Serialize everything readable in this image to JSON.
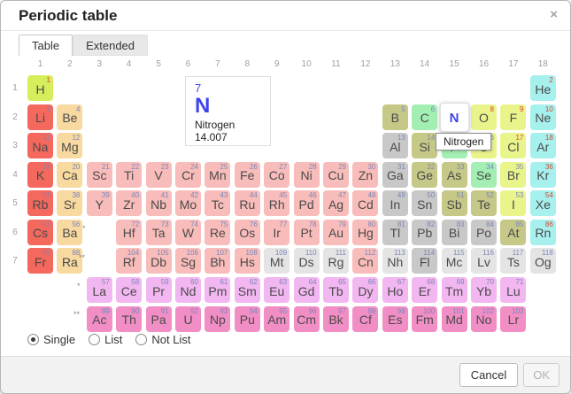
{
  "dialog": {
    "title": "Periodic table",
    "close_label": "×"
  },
  "tabs": [
    {
      "label": "Table",
      "active": true
    },
    {
      "label": "Extended",
      "active": false
    }
  ],
  "column_headers": [
    "1",
    "2",
    "3",
    "4",
    "5",
    "6",
    "7",
    "8",
    "9",
    "10",
    "11",
    "12",
    "13",
    "14",
    "15",
    "16",
    "17",
    "18"
  ],
  "row_headers": [
    "1",
    "2",
    "3",
    "4",
    "5",
    "6",
    "7"
  ],
  "info_card": {
    "number": "7",
    "symbol": "N",
    "name": "Nitrogen",
    "mass": "14.007"
  },
  "tooltip": {
    "text": "Nitrogen"
  },
  "options": [
    {
      "label": "Single",
      "selected": true
    },
    {
      "label": "List",
      "selected": false
    },
    {
      "label": "Not List",
      "selected": false
    }
  ],
  "footer": {
    "cancel_label": "Cancel",
    "ok_label": "OK",
    "ok_disabled": true
  },
  "fblock_markers": {
    "lanthanide": "*",
    "actinide": "**"
  },
  "category_colors": {
    "hydrogen": "#d6ed5c",
    "alkali": "#f4685e",
    "alkaline": "#f8d9a0",
    "transition": "#f8bcba",
    "post": "#c8c8c8",
    "metalloid": "#c5c886",
    "nonmetal": "#a3eeb2",
    "reactive": "#e9f48b",
    "noble": "#a6f0ee",
    "lanthanide": "#f2b6f0",
    "actinide": "#f28ec6",
    "unknown": "#e4e4e4"
  },
  "accent_color": "#3d45e8",
  "gas_number_elements": [
    "H",
    "He",
    "N",
    "O",
    "F",
    "Ne",
    "Cl",
    "Ar",
    "Kr",
    "Xe",
    "Rn"
  ],
  "elements": [
    {
      "n": 1,
      "sym": "H",
      "row": 1,
      "col": 1,
      "cat": "hydrogen"
    },
    {
      "n": 2,
      "sym": "He",
      "row": 1,
      "col": 18,
      "cat": "noble"
    },
    {
      "n": 3,
      "sym": "Li",
      "row": 2,
      "col": 1,
      "cat": "alkali"
    },
    {
      "n": 4,
      "sym": "Be",
      "row": 2,
      "col": 2,
      "cat": "alkaline"
    },
    {
      "n": 5,
      "sym": "B",
      "row": 2,
      "col": 13,
      "cat": "metalloid"
    },
    {
      "n": 6,
      "sym": "C",
      "row": 2,
      "col": 14,
      "cat": "nonmetal"
    },
    {
      "n": 7,
      "sym": "N",
      "row": 2,
      "col": 15,
      "cat": "nonmetal",
      "selected": true
    },
    {
      "n": 8,
      "sym": "O",
      "row": 2,
      "col": 16,
      "cat": "reactive"
    },
    {
      "n": 9,
      "sym": "F",
      "row": 2,
      "col": 17,
      "cat": "reactive"
    },
    {
      "n": 10,
      "sym": "Ne",
      "row": 2,
      "col": 18,
      "cat": "noble"
    },
    {
      "n": 11,
      "sym": "Na",
      "row": 3,
      "col": 1,
      "cat": "alkali"
    },
    {
      "n": 12,
      "sym": "Mg",
      "row": 3,
      "col": 2,
      "cat": "alkaline"
    },
    {
      "n": 13,
      "sym": "Al",
      "row": 3,
      "col": 13,
      "cat": "post"
    },
    {
      "n": 14,
      "sym": "Si",
      "row": 3,
      "col": 14,
      "cat": "metalloid"
    },
    {
      "n": 15,
      "sym": "P",
      "row": 3,
      "col": 15,
      "cat": "nonmetal"
    },
    {
      "n": 16,
      "sym": "S",
      "row": 3,
      "col": 16,
      "cat": "reactive"
    },
    {
      "n": 17,
      "sym": "Cl",
      "row": 3,
      "col": 17,
      "cat": "reactive"
    },
    {
      "n": 18,
      "sym": "Ar",
      "row": 3,
      "col": 18,
      "cat": "noble"
    },
    {
      "n": 19,
      "sym": "K",
      "row": 4,
      "col": 1,
      "cat": "alkali"
    },
    {
      "n": 20,
      "sym": "Ca",
      "row": 4,
      "col": 2,
      "cat": "alkaline"
    },
    {
      "n": 21,
      "sym": "Sc",
      "row": 4,
      "col": 3,
      "cat": "transition"
    },
    {
      "n": 22,
      "sym": "Ti",
      "row": 4,
      "col": 4,
      "cat": "transition"
    },
    {
      "n": 23,
      "sym": "V",
      "row": 4,
      "col": 5,
      "cat": "transition"
    },
    {
      "n": 24,
      "sym": "Cr",
      "row": 4,
      "col": 6,
      "cat": "transition"
    },
    {
      "n": 25,
      "sym": "Mn",
      "row": 4,
      "col": 7,
      "cat": "transition"
    },
    {
      "n": 26,
      "sym": "Fe",
      "row": 4,
      "col": 8,
      "cat": "transition"
    },
    {
      "n": 27,
      "sym": "Co",
      "row": 4,
      "col": 9,
      "cat": "transition"
    },
    {
      "n": 28,
      "sym": "Ni",
      "row": 4,
      "col": 10,
      "cat": "transition"
    },
    {
      "n": 29,
      "sym": "Cu",
      "row": 4,
      "col": 11,
      "cat": "transition"
    },
    {
      "n": 30,
      "sym": "Zn",
      "row": 4,
      "col": 12,
      "cat": "transition"
    },
    {
      "n": 31,
      "sym": "Ga",
      "row": 4,
      "col": 13,
      "cat": "post"
    },
    {
      "n": 32,
      "sym": "Ge",
      "row": 4,
      "col": 14,
      "cat": "metalloid"
    },
    {
      "n": 33,
      "sym": "As",
      "row": 4,
      "col": 15,
      "cat": "metalloid"
    },
    {
      "n": 34,
      "sym": "Se",
      "row": 4,
      "col": 16,
      "cat": "nonmetal"
    },
    {
      "n": 35,
      "sym": "Br",
      "row": 4,
      "col": 17,
      "cat": "reactive"
    },
    {
      "n": 36,
      "sym": "Kr",
      "row": 4,
      "col": 18,
      "cat": "noble"
    },
    {
      "n": 37,
      "sym": "Rb",
      "row": 5,
      "col": 1,
      "cat": "alkali"
    },
    {
      "n": 38,
      "sym": "Sr",
      "row": 5,
      "col": 2,
      "cat": "alkaline"
    },
    {
      "n": 39,
      "sym": "Y",
      "row": 5,
      "col": 3,
      "cat": "transition"
    },
    {
      "n": 40,
      "sym": "Zr",
      "row": 5,
      "col": 4,
      "cat": "transition"
    },
    {
      "n": 41,
      "sym": "Nb",
      "row": 5,
      "col": 5,
      "cat": "transition"
    },
    {
      "n": 42,
      "sym": "Mo",
      "row": 5,
      "col": 6,
      "cat": "transition"
    },
    {
      "n": 43,
      "sym": "Tc",
      "row": 5,
      "col": 7,
      "cat": "transition"
    },
    {
      "n": 44,
      "sym": "Ru",
      "row": 5,
      "col": 8,
      "cat": "transition"
    },
    {
      "n": 45,
      "sym": "Rh",
      "row": 5,
      "col": 9,
      "cat": "transition"
    },
    {
      "n": 46,
      "sym": "Pd",
      "row": 5,
      "col": 10,
      "cat": "transition"
    },
    {
      "n": 47,
      "sym": "Ag",
      "row": 5,
      "col": 11,
      "cat": "transition"
    },
    {
      "n": 48,
      "sym": "Cd",
      "row": 5,
      "col": 12,
      "cat": "transition"
    },
    {
      "n": 49,
      "sym": "In",
      "row": 5,
      "col": 13,
      "cat": "post"
    },
    {
      "n": 50,
      "sym": "Sn",
      "row": 5,
      "col": 14,
      "cat": "post"
    },
    {
      "n": 51,
      "sym": "Sb",
      "row": 5,
      "col": 15,
      "cat": "metalloid"
    },
    {
      "n": 52,
      "sym": "Te",
      "row": 5,
      "col": 16,
      "cat": "metalloid"
    },
    {
      "n": 53,
      "sym": "I",
      "row": 5,
      "col": 17,
      "cat": "reactive"
    },
    {
      "n": 54,
      "sym": "Xe",
      "row": 5,
      "col": 18,
      "cat": "noble"
    },
    {
      "n": 55,
      "sym": "Cs",
      "row": 6,
      "col": 1,
      "cat": "alkali"
    },
    {
      "n": 56,
      "sym": "Ba",
      "row": 6,
      "col": 2,
      "cat": "alkaline"
    },
    {
      "n": 72,
      "sym": "Hf",
      "row": 6,
      "col": 4,
      "cat": "transition"
    },
    {
      "n": 73,
      "sym": "Ta",
      "row": 6,
      "col": 5,
      "cat": "transition"
    },
    {
      "n": 74,
      "sym": "W",
      "row": 6,
      "col": 6,
      "cat": "transition"
    },
    {
      "n": 75,
      "sym": "Re",
      "row": 6,
      "col": 7,
      "cat": "transition"
    },
    {
      "n": 76,
      "sym": "Os",
      "row": 6,
      "col": 8,
      "cat": "transition"
    },
    {
      "n": 77,
      "sym": "Ir",
      "row": 6,
      "col": 9,
      "cat": "transition"
    },
    {
      "n": 78,
      "sym": "Pt",
      "row": 6,
      "col": 10,
      "cat": "transition"
    },
    {
      "n": 79,
      "sym": "Au",
      "row": 6,
      "col": 11,
      "cat": "transition"
    },
    {
      "n": 80,
      "sym": "Hg",
      "row": 6,
      "col": 12,
      "cat": "transition"
    },
    {
      "n": 81,
      "sym": "Tl",
      "row": 6,
      "col": 13,
      "cat": "post"
    },
    {
      "n": 82,
      "sym": "Pb",
      "row": 6,
      "col": 14,
      "cat": "post"
    },
    {
      "n": 83,
      "sym": "Bi",
      "row": 6,
      "col": 15,
      "cat": "post"
    },
    {
      "n": 84,
      "sym": "Po",
      "row": 6,
      "col": 16,
      "cat": "post"
    },
    {
      "n": 85,
      "sym": "At",
      "row": 6,
      "col": 17,
      "cat": "metalloid"
    },
    {
      "n": 86,
      "sym": "Rn",
      "row": 6,
      "col": 18,
      "cat": "noble"
    },
    {
      "n": 87,
      "sym": "Fr",
      "row": 7,
      "col": 1,
      "cat": "alkali"
    },
    {
      "n": 88,
      "sym": "Ra",
      "row": 7,
      "col": 2,
      "cat": "alkaline"
    },
    {
      "n": 104,
      "sym": "Rf",
      "row": 7,
      "col": 4,
      "cat": "transition"
    },
    {
      "n": 105,
      "sym": "Db",
      "row": 7,
      "col": 5,
      "cat": "transition"
    },
    {
      "n": 106,
      "sym": "Sg",
      "row": 7,
      "col": 6,
      "cat": "transition"
    },
    {
      "n": 107,
      "sym": "Bh",
      "row": 7,
      "col": 7,
      "cat": "transition"
    },
    {
      "n": 108,
      "sym": "Hs",
      "row": 7,
      "col": 8,
      "cat": "transition"
    },
    {
      "n": 109,
      "sym": "Mt",
      "row": 7,
      "col": 9,
      "cat": "unknown"
    },
    {
      "n": 110,
      "sym": "Ds",
      "row": 7,
      "col": 10,
      "cat": "unknown"
    },
    {
      "n": 111,
      "sym": "Rg",
      "row": 7,
      "col": 11,
      "cat": "unknown"
    },
    {
      "n": 112,
      "sym": "Cn",
      "row": 7,
      "col": 12,
      "cat": "transition"
    },
    {
      "n": 113,
      "sym": "Nh",
      "row": 7,
      "col": 13,
      "cat": "unknown"
    },
    {
      "n": 114,
      "sym": "Fl",
      "row": 7,
      "col": 14,
      "cat": "post"
    },
    {
      "n": 115,
      "sym": "Mc",
      "row": 7,
      "col": 15,
      "cat": "unknown"
    },
    {
      "n": 116,
      "sym": "Lv",
      "row": 7,
      "col": 16,
      "cat": "unknown"
    },
    {
      "n": 117,
      "sym": "Ts",
      "row": 7,
      "col": 17,
      "cat": "unknown"
    },
    {
      "n": 118,
      "sym": "Og",
      "row": 7,
      "col": 18,
      "cat": "unknown"
    },
    {
      "n": 57,
      "sym": "La",
      "row": 8,
      "col": 3,
      "cat": "lanthanide"
    },
    {
      "n": 58,
      "sym": "Ce",
      "row": 8,
      "col": 4,
      "cat": "lanthanide"
    },
    {
      "n": 59,
      "sym": "Pr",
      "row": 8,
      "col": 5,
      "cat": "lanthanide"
    },
    {
      "n": 60,
      "sym": "Nd",
      "row": 8,
      "col": 6,
      "cat": "lanthanide"
    },
    {
      "n": 61,
      "sym": "Pm",
      "row": 8,
      "col": 7,
      "cat": "lanthanide"
    },
    {
      "n": 62,
      "sym": "Sm",
      "row": 8,
      "col": 8,
      "cat": "lanthanide"
    },
    {
      "n": 63,
      "sym": "Eu",
      "row": 8,
      "col": 9,
      "cat": "lanthanide"
    },
    {
      "n": 64,
      "sym": "Gd",
      "row": 8,
      "col": 10,
      "cat": "lanthanide"
    },
    {
      "n": 65,
      "sym": "Tb",
      "row": 8,
      "col": 11,
      "cat": "lanthanide"
    },
    {
      "n": 66,
      "sym": "Dy",
      "row": 8,
      "col": 12,
      "cat": "lanthanide"
    },
    {
      "n": 67,
      "sym": "Ho",
      "row": 8,
      "col": 13,
      "cat": "lanthanide"
    },
    {
      "n": 68,
      "sym": "Er",
      "row": 8,
      "col": 14,
      "cat": "lanthanide"
    },
    {
      "n": 69,
      "sym": "Tm",
      "row": 8,
      "col": 15,
      "cat": "lanthanide"
    },
    {
      "n": 70,
      "sym": "Yb",
      "row": 8,
      "col": 16,
      "cat": "lanthanide"
    },
    {
      "n": 71,
      "sym": "Lu",
      "row": 8,
      "col": 17,
      "cat": "lanthanide"
    },
    {
      "n": 89,
      "sym": "Ac",
      "row": 9,
      "col": 3,
      "cat": "actinide"
    },
    {
      "n": 90,
      "sym": "Th",
      "row": 9,
      "col": 4,
      "cat": "actinide"
    },
    {
      "n": 91,
      "sym": "Pa",
      "row": 9,
      "col": 5,
      "cat": "actinide"
    },
    {
      "n": 92,
      "sym": "U",
      "row": 9,
      "col": 6,
      "cat": "actinide"
    },
    {
      "n": 93,
      "sym": "Np",
      "row": 9,
      "col": 7,
      "cat": "actinide"
    },
    {
      "n": 94,
      "sym": "Pu",
      "row": 9,
      "col": 8,
      "cat": "actinide"
    },
    {
      "n": 95,
      "sym": "Am",
      "row": 9,
      "col": 9,
      "cat": "actinide"
    },
    {
      "n": 96,
      "sym": "Cm",
      "row": 9,
      "col": 10,
      "cat": "actinide"
    },
    {
      "n": 97,
      "sym": "Bk",
      "row": 9,
      "col": 11,
      "cat": "actinide"
    },
    {
      "n": 98,
      "sym": "Cf",
      "row": 9,
      "col": 12,
      "cat": "actinide"
    },
    {
      "n": 99,
      "sym": "Es",
      "row": 9,
      "col": 13,
      "cat": "actinide"
    },
    {
      "n": 100,
      "sym": "Fm",
      "row": 9,
      "col": 14,
      "cat": "actinide"
    },
    {
      "n": 101,
      "sym": "Md",
      "row": 9,
      "col": 15,
      "cat": "actinide"
    },
    {
      "n": 102,
      "sym": "No",
      "row": 9,
      "col": 16,
      "cat": "actinide"
    },
    {
      "n": 103,
      "sym": "Lr",
      "row": 9,
      "col": 17,
      "cat": "actinide"
    }
  ]
}
